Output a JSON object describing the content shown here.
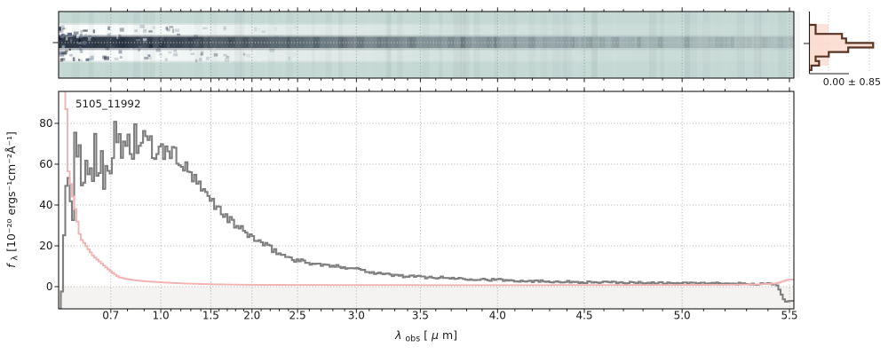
{
  "labels": {
    "title": "5105_11992",
    "hist_stats": "0.00 ± 0.85",
    "xlabel": {
      "lambda": "λ",
      "sub": "obs",
      "bracket": " [",
      "mu": "μ",
      "close": "m]"
    },
    "ylabel": {
      "f": "f",
      "sub": "λ",
      "units": " [10⁻²⁰ ergs⁻¹cm⁻²Å⁻¹]"
    }
  },
  "colors": {
    "flux_line": "#7f7f7f",
    "error_line": "#f2b3b3",
    "below_zero_shade": "#f4f3f1",
    "grid": "#b0b0b0",
    "spec2d_background": "#c5d8d4",
    "spec2d_trace": "#273140",
    "spec2d_band": "#ffffff",
    "hist_outline": "#5a3423",
    "hist_fill": "#fbdcd0",
    "hist_band": "#f7cdbd",
    "axis": "#1a1a1a"
  },
  "chart_data": [
    {
      "type": "heatmap",
      "name": "spec2d-rectified-spectrum",
      "description": "2D rectified spectrum strip sharing the wavelength axis with the 1D panel: dark source trace along the center row, strongest/noisiest at the blue end, fading to the red; white residual bands directly above and below the trace; teal background; dotted grid at major wavelength ticks and dotted line along the trace center",
      "bg_color": "#c5d8d4",
      "trace_color": "#273140",
      "band_color": "#ffffff",
      "grid_color": "#93a0a0",
      "center_line_color": "#c9cecd",
      "trace_fade": [
        [
          0,
          0.96
        ],
        [
          0.1,
          0.9
        ],
        [
          0.28,
          0.66
        ],
        [
          0.5,
          0.4
        ],
        [
          0.75,
          0.22
        ],
        [
          1,
          0.12
        ]
      ],
      "band_fade": [
        [
          0,
          0.97
        ],
        [
          0.1,
          0.9
        ],
        [
          0.28,
          0.55
        ],
        [
          0.5,
          0.28
        ],
        [
          0.75,
          0.12
        ],
        [
          1,
          0.05
        ]
      ]
    },
    {
      "type": "histogram",
      "name": "pixel-residual-histogram",
      "orientation": "horizontal",
      "stats_label": "0.00 ± 0.85",
      "mean": 0.0,
      "sigma": 0.85,
      "bar_fractions": [
        0.09,
        0.09,
        0.47,
        0.53,
        0.92,
        0.56,
        0.28,
        0.09,
        0.14,
        0.03
      ],
      "outline_color": "#5a3423",
      "fill_color": "#fbdcd0",
      "band_color": "#f7cdbd",
      "grid_color": "#b5b5b5"
    },
    {
      "type": "line",
      "name": "spec1d-extracted-spectrum",
      "title": "5105_11992",
      "xlabel": "λ_obs [μm]",
      "ylabel": "f_λ [10⁻²⁰ ergs⁻¹cm⁻²Å⁻¹]",
      "grid": "dotted, major ticks only",
      "below_zero_shade": "#f4f3f1",
      "x_axis": {
        "scale": "nonlinear (NIRSpec prism pixel sampling)",
        "range": [
          0.58,
          5.53
        ],
        "minor_step": 0.1,
        "tick_labels": [
          "0.7",
          "1.0",
          "1.5",
          "2.0",
          "2.5",
          "3.0",
          "3.5",
          "4.0",
          "4.5",
          "5.0",
          "5.5"
        ],
        "tick_wavelengths": [
          0.7,
          1.0,
          1.5,
          2.0,
          2.5,
          3.0,
          3.5,
          4.0,
          4.5,
          5.0,
          5.5
        ],
        "map_wavelengths": [
          0.58,
          0.7,
          1.0,
          1.5,
          2.0,
          2.5,
          3.0,
          3.5,
          4.0,
          4.5,
          5.0,
          5.5,
          5.53
        ],
        "map_fractions": [
          0,
          0.071,
          0.139,
          0.207,
          0.263,
          0.325,
          0.405,
          0.492,
          0.597,
          0.715,
          0.848,
          0.994,
          1
        ]
      },
      "y_axis": {
        "ticks": [
          0,
          20,
          40,
          60,
          80
        ],
        "limits": [
          -10.9,
          95.7
        ]
      },
      "series": [
        {
          "name": "flux",
          "color": "#7f7f7f",
          "wave": [
            0.585,
            0.6,
            0.63,
            0.66,
            0.7,
            0.75,
            0.8,
            0.85,
            0.9,
            0.95,
            1.0,
            1.05,
            1.1,
            1.15,
            1.2,
            1.25,
            1.3,
            1.35,
            1.4,
            1.45,
            1.5,
            1.55,
            1.6,
            1.65,
            1.7,
            1.75,
            1.8,
            1.85,
            1.9,
            1.95,
            2.0,
            2.05,
            2.1,
            2.15,
            2.2,
            2.25,
            2.3,
            2.35,
            2.4,
            2.45,
            2.5,
            2.6,
            2.7,
            2.8,
            2.9,
            3.0,
            3.1,
            3.2,
            3.3,
            3.4,
            3.5,
            3.6,
            3.7,
            3.8,
            3.9,
            4.0,
            4.1,
            4.2,
            4.3,
            4.4,
            4.5,
            4.6,
            4.7,
            4.8,
            4.9,
            5.0,
            5.1,
            5.2,
            5.3,
            5.4,
            5.44,
            5.46,
            5.48,
            5.5
          ],
          "value": [
            -11,
            45,
            58,
            62,
            66,
            70,
            71,
            72,
            70,
            67,
            65.5,
            66,
            66.5,
            64,
            61,
            58,
            55,
            51.5,
            48,
            45.5,
            43,
            40.5,
            38,
            35.8,
            33.8,
            32,
            30.3,
            28.7,
            27.2,
            25.8,
            24.5,
            23,
            21.6,
            20.2,
            18.9,
            17.6,
            16.4,
            15.3,
            14.4,
            13.6,
            12.9,
            11.7,
            10.7,
            10,
            9.6,
            9,
            7.4,
            6.3,
            5.6,
            5.1,
            4.8,
            4.5,
            4.2,
            3.9,
            3.6,
            3.3,
            3,
            2.8,
            2.6,
            2.4,
            2.2,
            2.1,
            2,
            1.9,
            1.8,
            1.7,
            1.6,
            1.5,
            1.4,
            1.3,
            1.2,
            -3,
            -7.5,
            -7
          ],
          "noise_sigma": [
            0,
            14,
            13,
            11,
            9.5,
            9,
            8,
            7,
            5,
            4,
            3,
            2.8,
            2.5,
            2.4,
            2.2,
            2,
            1.9,
            1.8,
            1.7,
            1.6,
            1.5,
            1.4,
            1.35,
            1.3,
            1.25,
            1.2,
            1.15,
            1.1,
            1.05,
            1,
            1,
            0.95,
            0.9,
            0.9,
            0.85,
            0.85,
            0.8,
            0.8,
            0.75,
            0.7,
            0.65,
            0.55,
            0.5,
            0.5,
            0.45,
            0.45,
            0.45,
            0.4,
            0.4,
            0.4,
            0.4,
            0.38,
            0.36,
            0.35,
            0.35,
            0.35,
            0.33,
            0.32,
            0.32,
            0.3,
            0.3,
            0.3,
            0.3,
            0.3,
            0.3,
            0.3,
            0.3,
            0.3,
            0.3,
            0.3,
            0.2,
            0.1,
            0,
            0
          ]
        },
        {
          "name": "uncertainty",
          "color": "#f2b3b3",
          "wave": [
            0.585,
            0.6,
            0.63,
            0.66,
            0.7,
            0.75,
            0.8,
            0.85,
            0.9,
            0.95,
            1.0,
            1.05,
            1.1,
            1.15,
            1.2,
            1.25,
            1.3,
            1.35,
            1.4,
            1.45,
            1.5,
            1.55,
            1.6,
            1.65,
            1.7,
            1.75,
            1.8,
            1.85,
            1.9,
            1.95,
            2.0,
            2.05,
            2.1,
            2.15,
            2.2,
            2.25,
            2.3,
            2.35,
            2.4,
            2.45,
            2.5,
            2.6,
            2.7,
            2.8,
            2.9,
            3.0,
            3.1,
            3.2,
            3.3,
            3.4,
            3.5,
            3.6,
            3.7,
            3.8,
            3.9,
            4.0,
            4.1,
            4.2,
            4.3,
            4.4,
            4.5,
            4.6,
            4.7,
            4.8,
            4.9,
            5.0,
            5.1,
            5.2,
            5.3,
            5.4,
            5.44,
            5.46,
            5.48,
            5.5
          ],
          "value": [
            250,
            60,
            24,
            15,
            7.5,
            4.6,
            3.7,
            3.1,
            2.7,
            2.4,
            2.15,
            2,
            1.85,
            1.75,
            1.65,
            1.55,
            1.45,
            1.4,
            1.32,
            1.26,
            1.2,
            1.15,
            1.1,
            1.07,
            1.04,
            1.01,
            0.99,
            0.97,
            0.95,
            0.93,
            0.91,
            0.9,
            0.89,
            0.88,
            0.87,
            0.86,
            0.85,
            0.85,
            0.84,
            0.84,
            0.83,
            0.82,
            0.81,
            0.8,
            0.8,
            0.79,
            0.78,
            0.78,
            0.77,
            0.77,
            0.76,
            0.76,
            0.75,
            0.75,
            0.75,
            0.75,
            0.75,
            0.75,
            0.76,
            0.77,
            0.78,
            0.79,
            0.8,
            0.81,
            0.83,
            0.85,
            0.88,
            0.92,
            1,
            1.3,
            1.6,
            2.2,
            3,
            3.5
          ]
        }
      ]
    }
  ]
}
